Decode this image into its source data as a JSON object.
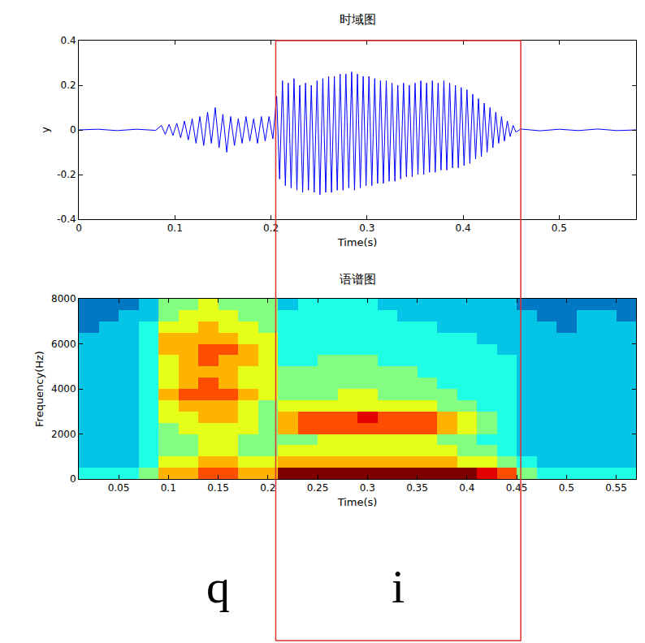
{
  "chart_data": [
    {
      "type": "line",
      "title": "时域图",
      "x_label": "Time(s)",
      "y_label": "y",
      "color": "#0000ff",
      "grid": false,
      "xlim": [
        0,
        0.58
      ],
      "xticks": [
        0,
        0.1,
        0.2,
        0.3,
        0.4,
        0.5
      ],
      "ylim": [
        -0.4,
        0.4
      ],
      "yticks": [
        -0.4,
        -0.2,
        0,
        0.2,
        0.4
      ],
      "x": [
        0,
        0.02,
        0.04,
        0.06,
        0.08,
        0.086,
        0.09,
        0.094,
        0.098,
        0.102,
        0.106,
        0.11,
        0.114,
        0.118,
        0.122,
        0.126,
        0.13,
        0.134,
        0.138,
        0.142,
        0.146,
        0.15,
        0.154,
        0.158,
        0.162,
        0.166,
        0.17,
        0.174,
        0.178,
        0.182,
        0.186,
        0.19,
        0.194,
        0.198,
        0.202,
        0.206,
        0.209,
        0.212,
        0.215,
        0.218,
        0.221,
        0.224,
        0.227,
        0.23,
        0.233,
        0.236,
        0.239,
        0.242,
        0.245,
        0.248,
        0.251,
        0.254,
        0.257,
        0.26,
        0.263,
        0.266,
        0.269,
        0.272,
        0.275,
        0.278,
        0.281,
        0.284,
        0.287,
        0.29,
        0.293,
        0.296,
        0.299,
        0.302,
        0.305,
        0.308,
        0.311,
        0.314,
        0.317,
        0.32,
        0.323,
        0.326,
        0.329,
        0.332,
        0.335,
        0.338,
        0.341,
        0.344,
        0.347,
        0.35,
        0.353,
        0.356,
        0.359,
        0.362,
        0.365,
        0.368,
        0.371,
        0.374,
        0.377,
        0.38,
        0.383,
        0.386,
        0.389,
        0.392,
        0.395,
        0.398,
        0.401,
        0.404,
        0.407,
        0.41,
        0.413,
        0.416,
        0.419,
        0.422,
        0.425,
        0.428,
        0.431,
        0.434,
        0.437,
        0.44,
        0.443,
        0.446,
        0.449,
        0.452,
        0.455,
        0.46,
        0.48,
        0.5,
        0.52,
        0.54,
        0.56,
        0.58
      ],
      "values": [
        0,
        0.003,
        -0.003,
        0.003,
        -0.002,
        0.02,
        -0.02,
        0.025,
        -0.025,
        0.03,
        -0.035,
        0.04,
        -0.045,
        0.05,
        -0.06,
        0.06,
        -0.07,
        0.08,
        -0.06,
        0.1,
        -0.08,
        0.07,
        -0.1,
        0.06,
        -0.07,
        0.05,
        -0.06,
        0.06,
        -0.05,
        0.05,
        -0.06,
        0.06,
        -0.05,
        0.06,
        -0.04,
        0.15,
        -0.22,
        0.22,
        -0.25,
        0.21,
        -0.26,
        0.23,
        -0.27,
        0.2,
        -0.28,
        0.21,
        -0.27,
        0.2,
        -0.28,
        0.22,
        -0.29,
        0.23,
        -0.28,
        0.24,
        -0.28,
        0.24,
        -0.27,
        0.25,
        -0.27,
        0.25,
        -0.26,
        0.26,
        -0.27,
        0.25,
        -0.26,
        0.24,
        -0.25,
        0.24,
        -0.25,
        0.23,
        -0.24,
        0.22,
        -0.24,
        0.22,
        -0.23,
        0.21,
        -0.23,
        0.2,
        -0.22,
        0.21,
        -0.21,
        0.2,
        -0.21,
        0.21,
        -0.2,
        0.22,
        -0.2,
        0.21,
        -0.19,
        0.22,
        -0.19,
        0.21,
        -0.18,
        0.22,
        -0.18,
        0.21,
        -0.17,
        0.2,
        -0.17,
        0.19,
        -0.16,
        0.18,
        -0.15,
        0.16,
        -0.13,
        0.14,
        -0.12,
        0.12,
        -0.1,
        0.1,
        -0.08,
        0.08,
        -0.06,
        0.06,
        -0.05,
        0.04,
        -0.03,
        0.02,
        -0.01,
        0.004,
        -0.004,
        0.003,
        -0.003,
        0.004,
        -0.003,
        0
      ]
    },
    {
      "type": "heatmap",
      "title": "语谱图",
      "x_label": "Time(s)",
      "y_label": "Frequency(Hz)",
      "color": "Jet",
      "xlim": [
        0.01,
        0.57
      ],
      "xticks": [
        0.05,
        0.1,
        0.15,
        0.2,
        0.25,
        0.3,
        0.35,
        0.4,
        0.45,
        0.5,
        0.55
      ],
      "ylim": [
        0,
        8000
      ],
      "yticks": [
        0,
        2000,
        4000,
        6000,
        8000
      ],
      "zlim": [
        0,
        10
      ],
      "x": [
        0.02,
        0.04,
        0.06,
        0.08,
        0.1,
        0.12,
        0.14,
        0.16,
        0.18,
        0.2,
        0.22,
        0.24,
        0.26,
        0.28,
        0.3,
        0.32,
        0.34,
        0.36,
        0.38,
        0.4,
        0.42,
        0.44,
        0.46,
        0.48,
        0.5,
        0.52,
        0.54,
        0.56
      ],
      "y": [
        250,
        750,
        1250,
        1750,
        2250,
        2750,
        3250,
        3750,
        4250,
        4750,
        5250,
        5750,
        6250,
        6750,
        7250,
        7750
      ],
      "z": [
        [
          4,
          4,
          4,
          5,
          7,
          7,
          8,
          8,
          7,
          7,
          10,
          10,
          10,
          10,
          10,
          10,
          10,
          10,
          10,
          10,
          9,
          8,
          5,
          4,
          4,
          4,
          4,
          4
        ],
        [
          3,
          3,
          3,
          4,
          6,
          6,
          7,
          7,
          6,
          6,
          7,
          7,
          7,
          7,
          7,
          7,
          7,
          7,
          7,
          6,
          6,
          5,
          4,
          3,
          3,
          3,
          3,
          3
        ],
        [
          3,
          3,
          3,
          4,
          5,
          5,
          6,
          6,
          5,
          5,
          6,
          6,
          6,
          6,
          6,
          6,
          6,
          6,
          6,
          5,
          5,
          4,
          3,
          3,
          3,
          3,
          3,
          3
        ],
        [
          3,
          3,
          3,
          4,
          5,
          5,
          6,
          6,
          5,
          5,
          5,
          5,
          6,
          6,
          6,
          6,
          6,
          6,
          5,
          5,
          4,
          4,
          3,
          3,
          3,
          3,
          3,
          3
        ],
        [
          3,
          3,
          3,
          4,
          5,
          6,
          6,
          6,
          6,
          5,
          7,
          8,
          8,
          8,
          8,
          8,
          8,
          8,
          7,
          6,
          5,
          4,
          3,
          3,
          3,
          3,
          3,
          3
        ],
        [
          3,
          3,
          3,
          4,
          6,
          6,
          7,
          7,
          6,
          5,
          7,
          8,
          8,
          8,
          9,
          8,
          8,
          8,
          7,
          6,
          5,
          4,
          3,
          3,
          3,
          3,
          3,
          3
        ],
        [
          3,
          3,
          3,
          4,
          6,
          7,
          7,
          7,
          6,
          5,
          6,
          6,
          6,
          6,
          6,
          6,
          6,
          6,
          5,
          5,
          4,
          4,
          3,
          3,
          3,
          3,
          3,
          3
        ],
        [
          3,
          3,
          3,
          4,
          7,
          8,
          8,
          8,
          7,
          6,
          5,
          5,
          5,
          6,
          6,
          5,
          5,
          5,
          5,
          4,
          4,
          4,
          3,
          3,
          3,
          3,
          3,
          3
        ],
        [
          3,
          3,
          3,
          4,
          6,
          7,
          8,
          7,
          6,
          6,
          5,
          5,
          5,
          5,
          5,
          5,
          5,
          5,
          4,
          4,
          4,
          4,
          3,
          3,
          3,
          3,
          3,
          3
        ],
        [
          3,
          3,
          3,
          4,
          6,
          7,
          7,
          7,
          6,
          6,
          5,
          5,
          5,
          5,
          5,
          5,
          5,
          4,
          4,
          4,
          4,
          4,
          3,
          3,
          3,
          3,
          3,
          3
        ],
        [
          3,
          3,
          3,
          4,
          6,
          7,
          8,
          7,
          7,
          6,
          4,
          4,
          5,
          5,
          5,
          4,
          4,
          4,
          4,
          4,
          4,
          4,
          3,
          3,
          3,
          3,
          3,
          3
        ],
        [
          3,
          3,
          3,
          4,
          7,
          7,
          8,
          8,
          7,
          6,
          4,
          4,
          4,
          4,
          4,
          4,
          4,
          4,
          4,
          4,
          4,
          3,
          3,
          3,
          3,
          3,
          3,
          3
        ],
        [
          3,
          3,
          3,
          4,
          7,
          7,
          7,
          7,
          6,
          6,
          4,
          4,
          4,
          4,
          4,
          4,
          4,
          4,
          4,
          4,
          3,
          3,
          3,
          3,
          3,
          3,
          3,
          3
        ],
        [
          2,
          3,
          3,
          4,
          6,
          6,
          7,
          6,
          6,
          5,
          4,
          4,
          4,
          4,
          4,
          4,
          4,
          4,
          3,
          3,
          3,
          3,
          3,
          3,
          2,
          3,
          3,
          3
        ],
        [
          2,
          2,
          3,
          3,
          5,
          6,
          6,
          6,
          5,
          5,
          4,
          4,
          4,
          4,
          4,
          4,
          3,
          3,
          3,
          3,
          3,
          3,
          3,
          2,
          2,
          3,
          3,
          2
        ],
        [
          2,
          2,
          2,
          3,
          5,
          5,
          6,
          5,
          5,
          5,
          3,
          4,
          4,
          4,
          4,
          3,
          3,
          3,
          3,
          3,
          3,
          3,
          2,
          2,
          2,
          2,
          2,
          2
        ]
      ]
    }
  ],
  "segments": [
    {
      "text": "q",
      "start": 0.085,
      "end": 0.205
    },
    {
      "text": "i",
      "start": 0.205,
      "end": 0.46,
      "color": "#e03030"
    }
  ]
}
